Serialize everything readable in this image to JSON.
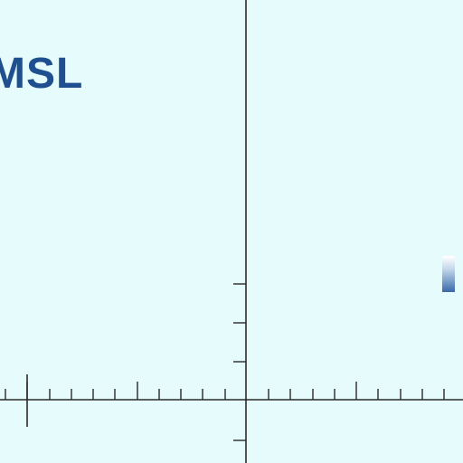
{
  "header": {
    "title": "MSL"
  },
  "colors": {
    "background": "#e6fbfc",
    "title": "#1f4f8e",
    "axis": "#2a2a2a"
  },
  "chart": {
    "x_axis_visible": true,
    "y_axis_visible": true,
    "grid": false
  }
}
